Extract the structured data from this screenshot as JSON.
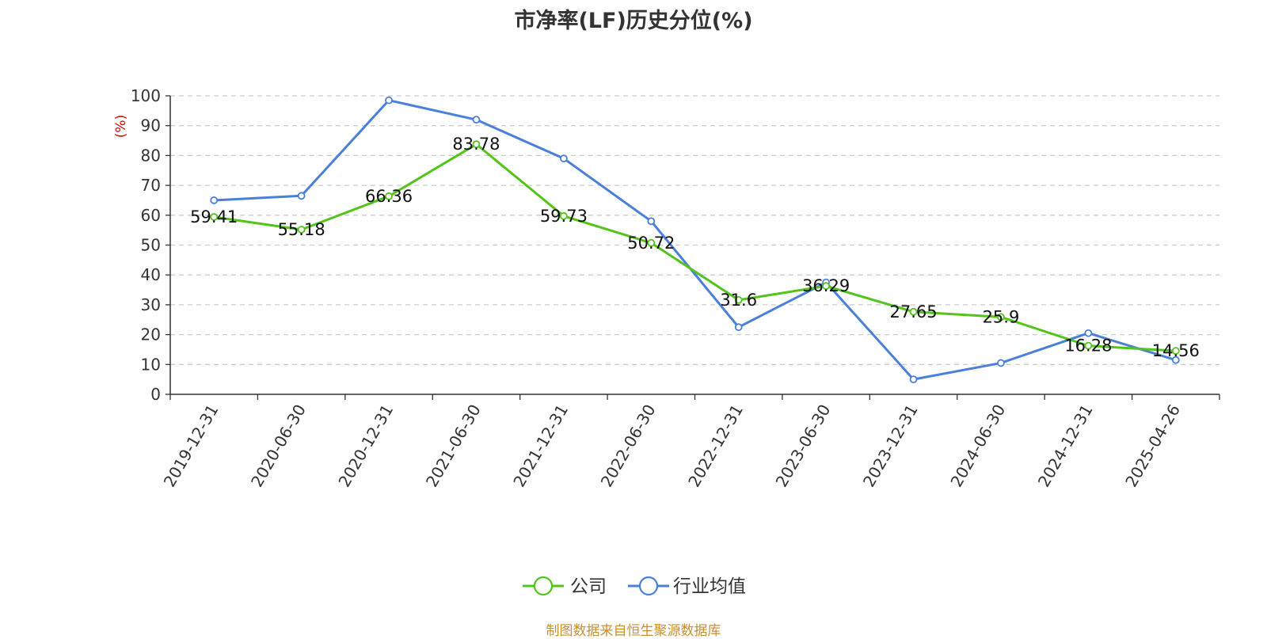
{
  "title": "市净率(LF)历史分位(%)",
  "source": "制图数据来自恒生聚源数据库",
  "chart_data": {
    "type": "line",
    "title": "市净率(LF)历史分位(%)",
    "ylabel": "(%)",
    "xlabel": "",
    "ylim": [
      0,
      100
    ],
    "yticks": [
      0,
      10,
      20,
      30,
      40,
      50,
      60,
      70,
      80,
      90,
      100
    ],
    "grid": true,
    "legend_position": "bottom",
    "categories": [
      "2019-12-31",
      "2020-06-30",
      "2020-12-31",
      "2021-06-30",
      "2021-12-31",
      "2022-06-30",
      "2022-12-31",
      "2023-06-30",
      "2023-12-31",
      "2024-06-30",
      "2024-12-31",
      "2025-04-26"
    ],
    "series": [
      {
        "name": "公司",
        "color": "#52c41a",
        "show_labels": true,
        "values": [
          59.41,
          55.18,
          66.36,
          83.78,
          59.73,
          50.72,
          31.6,
          36.29,
          27.65,
          25.9,
          16.28,
          14.56
        ]
      },
      {
        "name": "行业均值",
        "color": "#4a7fdc",
        "show_labels": false,
        "values": [
          65,
          66.5,
          98.5,
          92,
          79,
          58,
          22.5,
          37.5,
          5,
          10.5,
          20.5,
          11.5
        ]
      }
    ]
  }
}
